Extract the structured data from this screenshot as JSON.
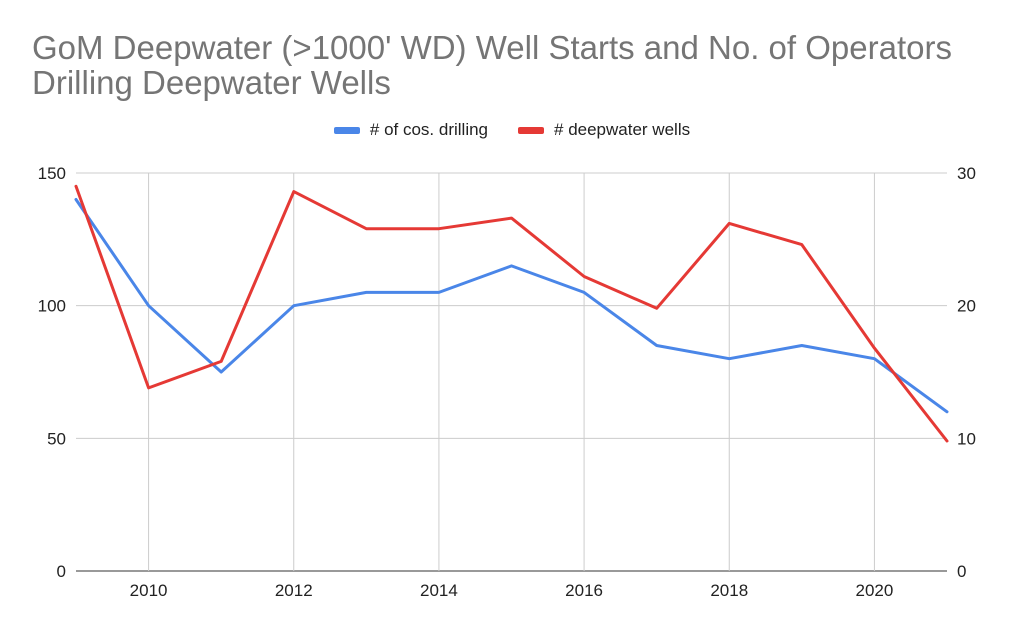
{
  "chart_data": {
    "type": "line",
    "title_lines": [
      "GoM Deepwater (>1000' WD) Well Starts and No. of Operators",
      "Drilling Deepwater Wells"
    ],
    "x": [
      2009,
      2010,
      2011,
      2012,
      2013,
      2014,
      2015,
      2016,
      2017,
      2018,
      2019,
      2020,
      2021
    ],
    "xlim": [
      2009,
      2021
    ],
    "xticks": [
      2010,
      2012,
      2014,
      2016,
      2018,
      2020
    ],
    "ylim_left": [
      0,
      150
    ],
    "yticks_left": [
      0,
      50,
      100,
      150
    ],
    "ylim_right": [
      0,
      30
    ],
    "yticks_right": [
      0,
      10,
      20,
      30
    ],
    "grid": true,
    "legend_position": "top",
    "series": [
      {
        "name": "# of cos. drilling",
        "axis": "left",
        "color": "#4a86e8",
        "values": [
          140,
          100,
          75,
          100,
          105,
          105,
          115,
          105,
          85,
          80,
          85,
          80,
          60
        ]
      },
      {
        "name": "# deepwater wells",
        "axis": "right",
        "color": "#e53935",
        "values": [
          29,
          13.8,
          15.8,
          28.6,
          25.8,
          25.8,
          26.6,
          22.2,
          19.8,
          26.2,
          24.6,
          16.8,
          9.8
        ]
      }
    ]
  }
}
